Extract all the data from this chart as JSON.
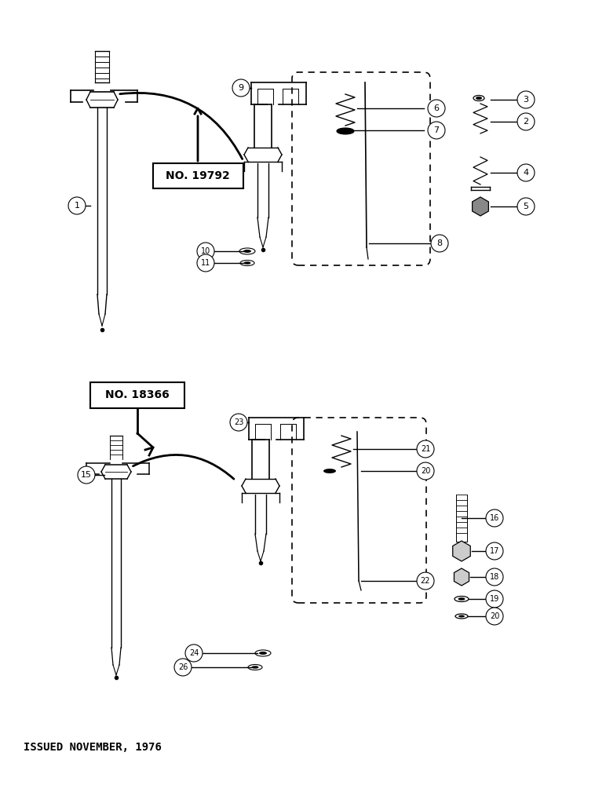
{
  "bg_color": "#ffffff",
  "fig_width": 7.72,
  "fig_height": 10.0,
  "footer_text": "ISSUED NOVEMBER, 1976",
  "label1": "NO. 19792",
  "label2": "NO. 18366"
}
